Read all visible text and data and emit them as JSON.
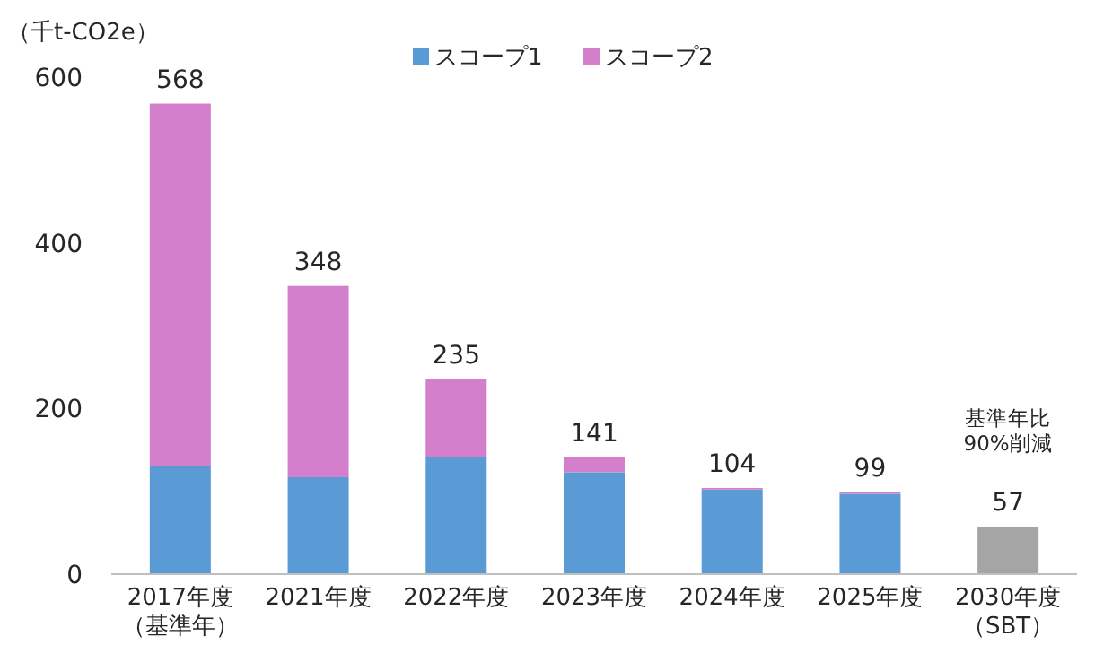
{
  "chart_data": {
    "type": "bar",
    "stacked": true,
    "ylabel": "（千t-CO2e）",
    "categories": [
      "2017年度（基準年）",
      "2021年度",
      "2022年度",
      "2023年度",
      "2024年度",
      "2025年度",
      "2030年度（SBT）"
    ],
    "series": [
      {
        "name": "スコープ1",
        "color": "#5b9bd5",
        "values": [
          130,
          117,
          141,
          123,
          102,
          97,
          null
        ]
      },
      {
        "name": "スコープ2",
        "color": "#d37fcc",
        "values": [
          438,
          231,
          94,
          18,
          2,
          2,
          null
        ]
      },
      {
        "color": "#a5a5a5",
        "values": [
          null,
          null,
          null,
          null,
          null,
          null,
          57
        ]
      }
    ],
    "totals": [
      "568",
      "348",
      "235",
      "141",
      "104",
      "99",
      "57"
    ],
    "annotations": [
      "基準年比90%削減"
    ],
    "ylim": [
      0,
      600
    ],
    "yticks": [
      0,
      200,
      400,
      600
    ],
    "legend": "top"
  }
}
